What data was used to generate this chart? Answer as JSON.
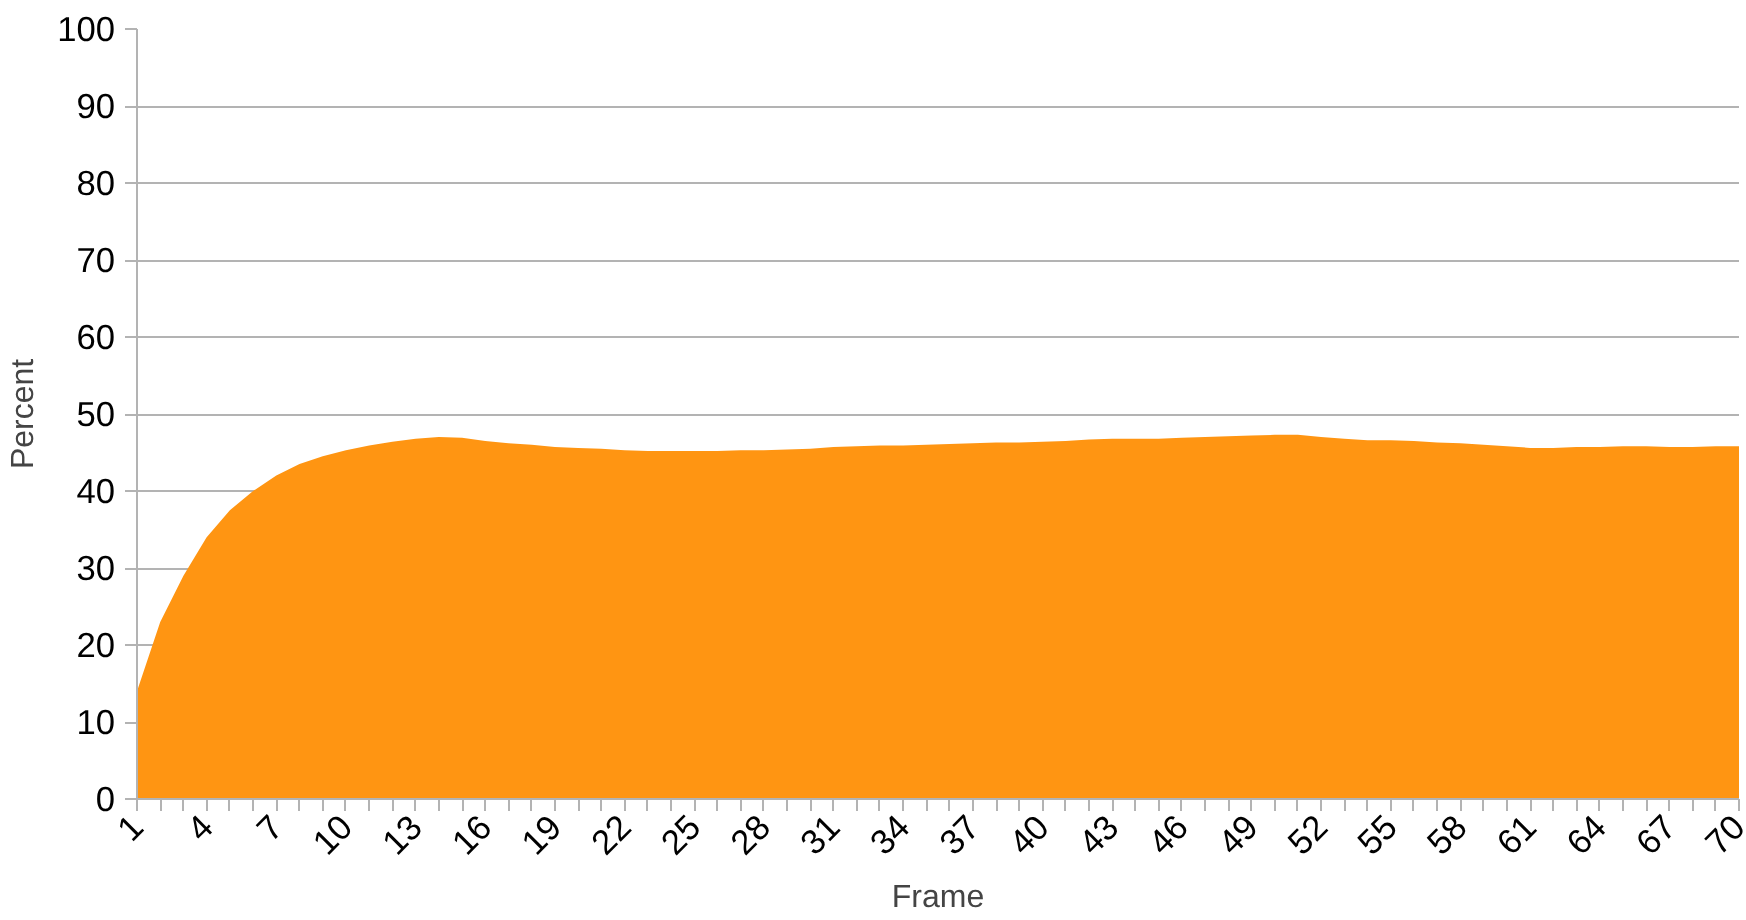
{
  "chart_data": {
    "type": "area",
    "xlabel": "Frame",
    "ylabel": "Percent",
    "categories": [
      "1",
      null,
      null,
      "4",
      null,
      null,
      "7",
      null,
      null,
      "10",
      null,
      null,
      "13",
      null,
      null,
      "16",
      null,
      null,
      "19",
      null,
      null,
      "22",
      null,
      null,
      "25",
      null,
      null,
      "28",
      null,
      null,
      "31",
      null,
      null,
      "34",
      null,
      null,
      "37",
      null,
      null,
      "40",
      null,
      null,
      "43",
      null,
      null,
      "46",
      null,
      null,
      "49",
      null,
      null,
      "52",
      null,
      null,
      "55",
      null,
      null,
      "58",
      null,
      null,
      "61",
      null,
      null,
      "64",
      null,
      null,
      "67",
      null,
      null,
      "70"
    ],
    "series": [
      {
        "color": "#ff9512",
        "values": [
          14,
          23,
          29,
          34,
          37.5,
          40,
          42,
          43.5,
          44.5,
          45.3,
          45.9,
          46.4,
          46.8,
          47,
          46.9,
          46.5,
          46.2,
          46,
          45.7,
          45.6,
          45.5,
          45.3,
          45.2,
          45.2,
          45.2,
          45.2,
          45.3,
          45.3,
          45.4,
          45.5,
          45.7,
          45.8,
          45.9,
          45.9,
          46,
          46.1,
          46.2,
          46.3,
          46.3,
          46.4,
          46.5,
          46.7,
          46.8,
          46.8,
          46.8,
          46.9,
          47,
          47.1,
          47.2,
          47.3,
          47.3,
          47,
          46.8,
          46.6,
          46.6,
          46.5,
          46.3,
          46.2,
          46,
          45.8,
          45.6,
          45.6,
          45.7,
          45.7,
          45.8,
          45.8,
          45.7,
          45.7,
          45.8,
          45.8
        ]
      }
    ],
    "ylim": [
      0,
      100
    ],
    "yticks": [
      0,
      10,
      20,
      30,
      40,
      50,
      60,
      70,
      80,
      90,
      100
    ],
    "grid": "y"
  }
}
